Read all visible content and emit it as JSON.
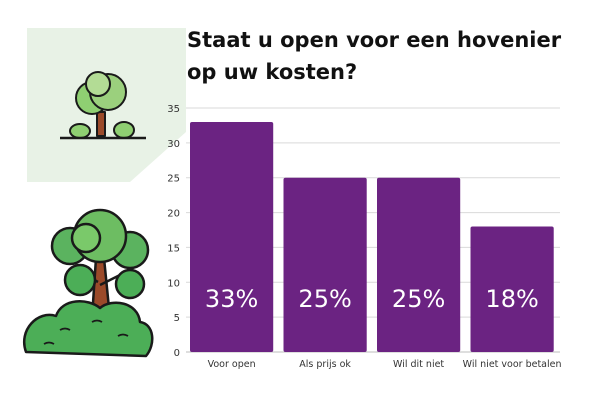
{
  "title": "Staat u open voor een hovenier op uw kosten?",
  "colors": {
    "bar": "#6b2382",
    "panel": "#e8f2e6",
    "grid": "#d9d9d9",
    "tree_light": "#9bd07d",
    "tree_dark": "#4cae57",
    "trunk": "#9b4a2a"
  },
  "icons": [
    "small-tree-icon",
    "tree-with-bush-illustration"
  ],
  "chart_data": {
    "type": "bar",
    "title": "Staat u open voor een hovenier op uw kosten?",
    "categories": [
      "Voor open",
      "Als prijs ok",
      "Wil dit niet",
      "Wil niet voor betalen"
    ],
    "values": [
      33,
      25,
      25,
      18
    ],
    "data_labels": [
      "33%",
      "25%",
      "25%",
      "18%"
    ],
    "ylim": [
      0,
      35
    ],
    "yticks": [
      0,
      5,
      10,
      15,
      20,
      25,
      30,
      35
    ],
    "xlabel": "",
    "ylabel": "",
    "grid": true,
    "legend": "none"
  }
}
